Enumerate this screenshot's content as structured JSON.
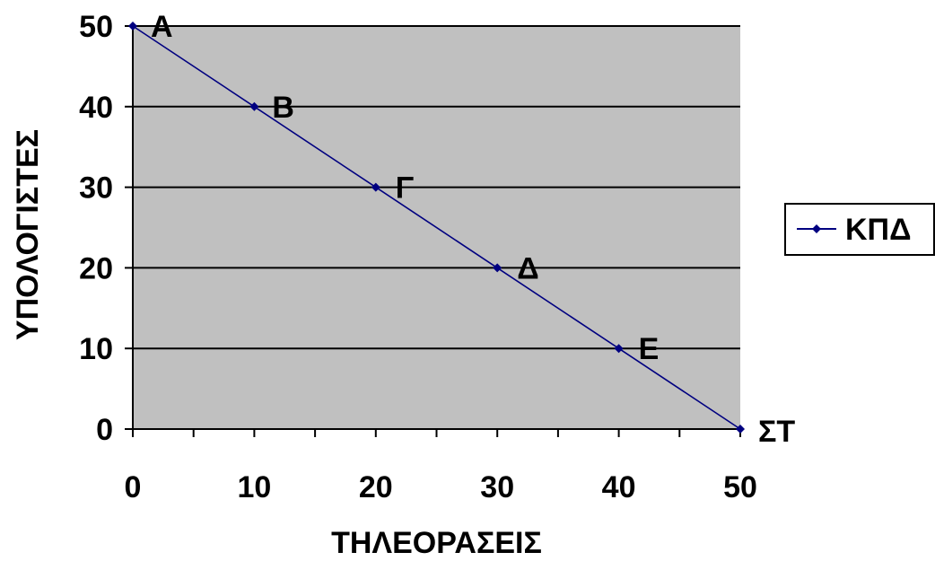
{
  "chart_data": {
    "type": "line",
    "xlabel": "ΤΗΛΕΟΡΑΣΕΙΣ",
    "ylabel": "ΥΠΟΛΟΓΙΣΤΕΣ",
    "xlim": [
      0,
      50
    ],
    "ylim": [
      0,
      50
    ],
    "x_ticks": [
      0,
      10,
      20,
      30,
      40,
      50
    ],
    "y_ticks": [
      0,
      10,
      20,
      30,
      40,
      50
    ],
    "grid": "horizontal",
    "legend": "right",
    "series": [
      {
        "name": "ΚΠΔ",
        "color": "#000080",
        "marker": "diamond",
        "points": [
          {
            "x": 0,
            "y": 50,
            "label": "Α"
          },
          {
            "x": 10,
            "y": 40,
            "label": "Β"
          },
          {
            "x": 20,
            "y": 30,
            "label": "Γ"
          },
          {
            "x": 30,
            "y": 20,
            "label": "Δ"
          },
          {
            "x": 40,
            "y": 10,
            "label": "Ε"
          },
          {
            "x": 50,
            "y": 0,
            "label": "ΣΤ"
          }
        ]
      }
    ],
    "colors": {
      "plot_background": "#c0c0c0",
      "gridline": "#000000",
      "line": "#000080"
    }
  }
}
